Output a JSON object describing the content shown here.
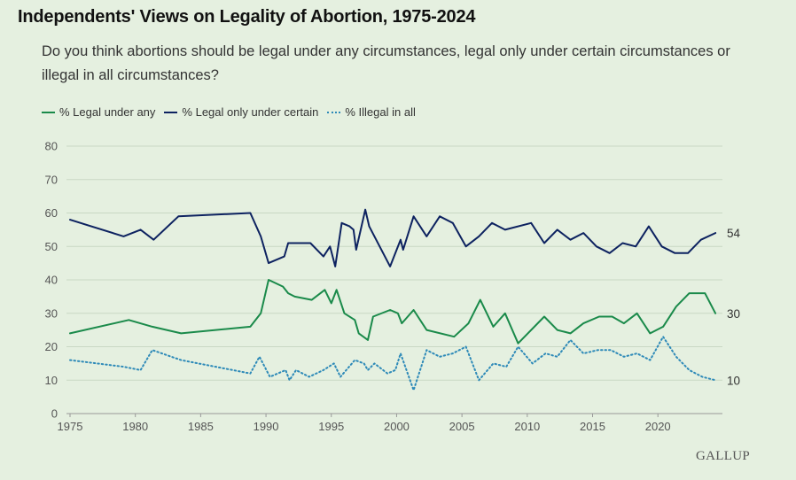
{
  "header": {
    "title": "Independents' Views on Legality of Abortion, 1975-2024",
    "subtitle": "Do you think abortions should be legal under any circumstances, legal only under certain circumstances or illegal in all circumstances?"
  },
  "brand": {
    "watermark": "GALLUP"
  },
  "colors": {
    "legal": "#1a8a4a",
    "certain": "#0d2260",
    "illegal": "#2e8ab8",
    "grid": "#c9d8c4"
  },
  "chart_data": {
    "type": "line",
    "title": "Independents' Views on Legality of Abortion, 1975-2024",
    "xlabel": "",
    "ylabel": "",
    "xlim": [
      1975,
      2024.6
    ],
    "ylim": [
      0,
      80
    ],
    "x_ticks": [
      1975,
      1980,
      1985,
      1990,
      1995,
      2000,
      2005,
      2010,
      2015,
      2020
    ],
    "y_ticks": [
      0,
      10,
      20,
      30,
      40,
      50,
      60,
      70,
      80
    ],
    "grid": true,
    "legend_position": "top-left",
    "series": [
      {
        "name": "% Legal under any",
        "key": "legal",
        "end_label": "30",
        "points": [
          [
            1975,
            24
          ],
          [
            1979.5,
            28
          ],
          [
            1981.3,
            26
          ],
          [
            1983.5,
            24
          ],
          [
            1988.8,
            26
          ],
          [
            1989.6,
            30
          ],
          [
            1990.2,
            40
          ],
          [
            1991.3,
            38
          ],
          [
            1991.7,
            36
          ],
          [
            1992.2,
            35
          ],
          [
            1993.5,
            34
          ],
          [
            1994.5,
            37
          ],
          [
            1995,
            33
          ],
          [
            1995.4,
            37
          ],
          [
            1996,
            30
          ],
          [
            1996.8,
            28
          ],
          [
            1997.1,
            24
          ],
          [
            1997.8,
            22
          ],
          [
            1998.2,
            29
          ],
          [
            1999.5,
            31
          ],
          [
            2000.1,
            30
          ],
          [
            2000.4,
            27
          ],
          [
            2001.3,
            31
          ],
          [
            2002.3,
            25
          ],
          [
            2004.4,
            23
          ],
          [
            2005.5,
            27
          ],
          [
            2006.4,
            34
          ],
          [
            2007.4,
            26
          ],
          [
            2008.3,
            30
          ],
          [
            2009.3,
            21
          ],
          [
            2011.3,
            29
          ],
          [
            2012.3,
            25
          ],
          [
            2013.3,
            24
          ],
          [
            2014.3,
            27
          ],
          [
            2015.5,
            29
          ],
          [
            2016.5,
            29
          ],
          [
            2017.4,
            27
          ],
          [
            2018.4,
            30
          ],
          [
            2019.4,
            24
          ],
          [
            2020.4,
            26
          ],
          [
            2021.4,
            32
          ],
          [
            2022.4,
            36
          ],
          [
            2023.6,
            36
          ],
          [
            2024.4,
            30
          ]
        ]
      },
      {
        "name": "% Legal only under certain",
        "key": "certain",
        "end_label": "54",
        "points": [
          [
            1975,
            58
          ],
          [
            1979.1,
            53
          ],
          [
            1980.4,
            55
          ],
          [
            1981.4,
            52
          ],
          [
            1983.3,
            59
          ],
          [
            1988.8,
            60
          ],
          [
            1989.6,
            53
          ],
          [
            1990.2,
            45
          ],
          [
            1991.4,
            47
          ],
          [
            1991.7,
            51
          ],
          [
            1993.4,
            51
          ],
          [
            1994.4,
            47
          ],
          [
            1994.9,
            50
          ],
          [
            1995.3,
            44
          ],
          [
            1995.8,
            57
          ],
          [
            1996.4,
            56
          ],
          [
            1996.7,
            55
          ],
          [
            1996.9,
            49
          ],
          [
            1997.6,
            61
          ],
          [
            1997.9,
            56
          ],
          [
            1999.5,
            44
          ],
          [
            2000.3,
            52
          ],
          [
            2000.5,
            49
          ],
          [
            2001.3,
            59
          ],
          [
            2002.3,
            53
          ],
          [
            2003.3,
            59
          ],
          [
            2004.3,
            57
          ],
          [
            2005.3,
            50
          ],
          [
            2006.3,
            53
          ],
          [
            2007.3,
            57
          ],
          [
            2008.3,
            55
          ],
          [
            2010.3,
            57
          ],
          [
            2011.3,
            51
          ],
          [
            2012.3,
            55
          ],
          [
            2013.3,
            52
          ],
          [
            2014.3,
            54
          ],
          [
            2015.3,
            50
          ],
          [
            2016.3,
            48
          ],
          [
            2017.3,
            51
          ],
          [
            2018.3,
            50
          ],
          [
            2019.3,
            56
          ],
          [
            2020.3,
            50
          ],
          [
            2021.3,
            48
          ],
          [
            2022.3,
            48
          ],
          [
            2023.3,
            52
          ],
          [
            2024.4,
            54
          ]
        ]
      },
      {
        "name": "% Illegal in all",
        "key": "illegal",
        "end_label": "10",
        "points": [
          [
            1975,
            16
          ],
          [
            1979.1,
            14
          ],
          [
            1980.4,
            13
          ],
          [
            1981.3,
            19
          ],
          [
            1983.5,
            16
          ],
          [
            1988.8,
            12
          ],
          [
            1989.5,
            17
          ],
          [
            1990.3,
            11
          ],
          [
            1991.5,
            13
          ],
          [
            1991.8,
            10
          ],
          [
            1992.3,
            13
          ],
          [
            1993.3,
            11
          ],
          [
            1994.4,
            13
          ],
          [
            1995.2,
            15
          ],
          [
            1995.7,
            11
          ],
          [
            1996.8,
            16
          ],
          [
            1997.5,
            15
          ],
          [
            1997.8,
            13
          ],
          [
            1998.3,
            15
          ],
          [
            1999.3,
            12
          ],
          [
            1999.9,
            13
          ],
          [
            2000.3,
            18
          ],
          [
            2001.3,
            7
          ],
          [
            2002.3,
            19
          ],
          [
            2003.3,
            17
          ],
          [
            2004.3,
            18
          ],
          [
            2005.3,
            20
          ],
          [
            2006.3,
            10
          ],
          [
            2007.4,
            15
          ],
          [
            2008.4,
            14
          ],
          [
            2009.3,
            20
          ],
          [
            2010.4,
            15
          ],
          [
            2011.4,
            18
          ],
          [
            2012.3,
            17
          ],
          [
            2013.3,
            22
          ],
          [
            2014.3,
            18
          ],
          [
            2015.4,
            19
          ],
          [
            2016.4,
            19
          ],
          [
            2017.4,
            17
          ],
          [
            2018.4,
            18
          ],
          [
            2019.4,
            16
          ],
          [
            2020.4,
            23
          ],
          [
            2021.4,
            17
          ],
          [
            2022.4,
            13
          ],
          [
            2023.4,
            11
          ],
          [
            2024.4,
            10
          ]
        ]
      }
    ]
  }
}
